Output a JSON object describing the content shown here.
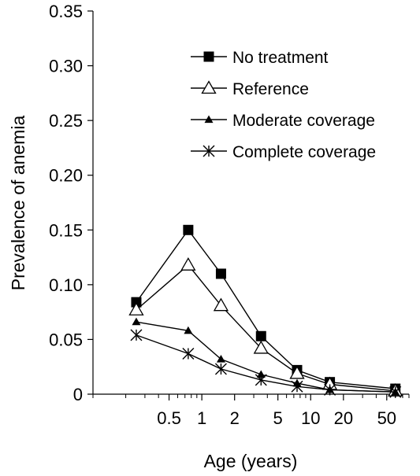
{
  "chart_data": {
    "type": "line",
    "x_scale": "log",
    "xlabel": "Age (years)",
    "ylabel": "Prevalence of anemia",
    "xlim": [
      0.1,
      80
    ],
    "ylim": [
      0,
      0.35
    ],
    "grid": false,
    "legend_position": "top-right",
    "y_ticks": [
      {
        "value": 0,
        "label": "0"
      },
      {
        "value": 0.05,
        "label": "0.05"
      },
      {
        "value": 0.1,
        "label": "0.10"
      },
      {
        "value": 0.15,
        "label": "0.15"
      },
      {
        "value": 0.2,
        "label": "0.20"
      },
      {
        "value": 0.25,
        "label": "0.25"
      },
      {
        "value": 0.3,
        "label": "0.30"
      },
      {
        "value": 0.35,
        "label": "0.35"
      }
    ],
    "x_ticks": [
      {
        "value": 0.5,
        "label": "0.5"
      },
      {
        "value": 1,
        "label": "1"
      },
      {
        "value": 2,
        "label": "2"
      },
      {
        "value": 5,
        "label": "5"
      },
      {
        "value": 10,
        "label": "10"
      },
      {
        "value": 20,
        "label": "20"
      },
      {
        "value": 50,
        "label": "50"
      }
    ],
    "x_minor_ticks": [
      0.1,
      0.2,
      0.3,
      0.4,
      0.6,
      0.7,
      0.8,
      0.9,
      3,
      4,
      6,
      7,
      8,
      9,
      30,
      40,
      60,
      70,
      80
    ],
    "x": [
      0.25,
      0.75,
      1.5,
      3.5,
      7.5,
      15,
      60
    ],
    "series": [
      {
        "name": "No treatment",
        "marker": "square-filled",
        "values": [
          0.084,
          0.15,
          0.11,
          0.053,
          0.022,
          0.011,
          0.005
        ]
      },
      {
        "name": "Reference",
        "marker": "triangle-open",
        "values": [
          0.077,
          0.118,
          0.081,
          0.042,
          0.019,
          0.009,
          0.003
        ]
      },
      {
        "name": "Moderate coverage",
        "marker": "triangle-filled",
        "values": [
          0.066,
          0.058,
          0.032,
          0.018,
          0.01,
          0.004,
          0.002
        ]
      },
      {
        "name": "Complete coverage",
        "marker": "asterisk",
        "values": [
          0.054,
          0.037,
          0.023,
          0.013,
          0.007,
          0.004,
          0.002
        ]
      }
    ]
  }
}
